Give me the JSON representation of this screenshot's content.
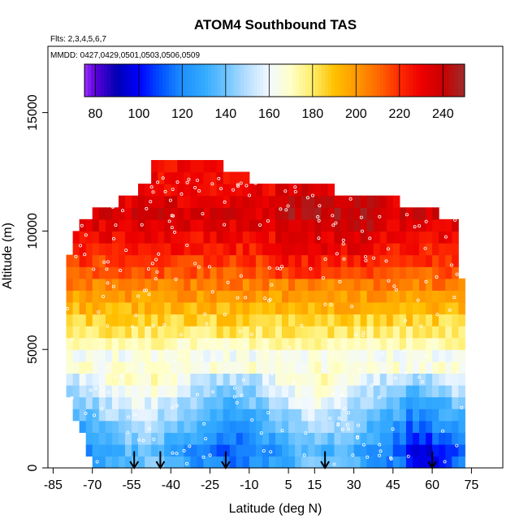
{
  "chart_data": {
    "type": "heatmap",
    "title": "ATOM4 Southbound TAS",
    "flights_note": "Flts: 2,3,4,5,6,7",
    "dates_note": "MMDD: 0427,0429,0501,0503,0506,0509",
    "xlabel": "Latitude (deg N)",
    "ylabel": "Altitude (m)",
    "xlim": [
      -87,
      87
    ],
    "ylim": [
      0,
      17800
    ],
    "x_ticks": [
      -85,
      -70,
      -55,
      -40,
      -25,
      -10,
      5,
      15,
      30,
      45,
      60,
      75
    ],
    "x_tick_labels": [
      "-85",
      "-70",
      "-55",
      "-40",
      "-25",
      "-10",
      "5",
      "15",
      "30",
      "45",
      "60",
      "75"
    ],
    "y_ticks": [
      0,
      5000,
      10000,
      15000
    ],
    "y_tick_labels": [
      "0",
      "5000",
      "10000",
      "15000"
    ],
    "colorbar": {
      "min": 75,
      "max": 250,
      "ticks": [
        80,
        100,
        120,
        140,
        160,
        180,
        200,
        220,
        240
      ],
      "tick_labels": [
        "80",
        "100",
        "120",
        "140",
        "160",
        "180",
        "200",
        "220",
        "240"
      ],
      "stops": [
        {
          "v": 75,
          "c": "#9a30ff"
        },
        {
          "v": 80,
          "c": "#5a00d8"
        },
        {
          "v": 90,
          "c": "#0000b4"
        },
        {
          "v": 100,
          "c": "#0000ff"
        },
        {
          "v": 110,
          "c": "#0050ff"
        },
        {
          "v": 120,
          "c": "#1e90ff"
        },
        {
          "v": 130,
          "c": "#33aaff"
        },
        {
          "v": 140,
          "c": "#6ec4ff"
        },
        {
          "v": 150,
          "c": "#b8e0ff"
        },
        {
          "v": 160,
          "c": "#f2f9ff"
        },
        {
          "v": 170,
          "c": "#ffffc8"
        },
        {
          "v": 180,
          "c": "#ffee6a"
        },
        {
          "v": 190,
          "c": "#ffc000"
        },
        {
          "v": 200,
          "c": "#ff9a00"
        },
        {
          "v": 210,
          "c": "#ff6a00"
        },
        {
          "v": 220,
          "c": "#ff2a00"
        },
        {
          "v": 230,
          "c": "#ee0000"
        },
        {
          "v": 240,
          "c": "#c80000"
        },
        {
          "v": 250,
          "c": "#a02a2a"
        }
      ]
    },
    "altitude_profile_tas": [
      {
        "alt": 250,
        "tas": 128
      },
      {
        "alt": 750,
        "tas": 124
      },
      {
        "alt": 1250,
        "tas": 130
      },
      {
        "alt": 1750,
        "tas": 136
      },
      {
        "alt": 2250,
        "tas": 141
      },
      {
        "alt": 2750,
        "tas": 147
      },
      {
        "alt": 3250,
        "tas": 153
      },
      {
        "alt": 3750,
        "tas": 160
      },
      {
        "alt": 4250,
        "tas": 166
      },
      {
        "alt": 4750,
        "tas": 163
      },
      {
        "alt": 5250,
        "tas": 172
      },
      {
        "alt": 5750,
        "tas": 180
      },
      {
        "alt": 6250,
        "tas": 186
      },
      {
        "alt": 6750,
        "tas": 193
      },
      {
        "alt": 7250,
        "tas": 199
      },
      {
        "alt": 7750,
        "tas": 206
      },
      {
        "alt": 8250,
        "tas": 212
      },
      {
        "alt": 8750,
        "tas": 218
      },
      {
        "alt": 9250,
        "tas": 224
      },
      {
        "alt": 9750,
        "tas": 229
      },
      {
        "alt": 10250,
        "tas": 233
      },
      {
        "alt": 10750,
        "tas": 236
      },
      {
        "alt": 11250,
        "tas": 233
      },
      {
        "alt": 11750,
        "tas": 230
      },
      {
        "alt": 12250,
        "tas": 228
      }
    ],
    "sampled_region_lat_extent": [
      {
        "alt": 500,
        "lat_min": -71,
        "lat_max": 72
      },
      {
        "alt": 3000,
        "lat_min": -79,
        "lat_max": 72
      },
      {
        "alt": 5500,
        "lat_min": -81,
        "lat_max": 73
      },
      {
        "alt": 8500,
        "lat_min": -80,
        "lat_max": 71
      },
      {
        "alt": 10500,
        "lat_min": -75,
        "lat_max": 70
      },
      {
        "alt": 11500,
        "lat_min": -56,
        "lat_max": 40
      },
      {
        "alt": 12400,
        "lat_min": -47,
        "lat_max": -20
      }
    ],
    "profile_markers_lat": [
      -54,
      -44,
      -19,
      19,
      60
    ]
  }
}
